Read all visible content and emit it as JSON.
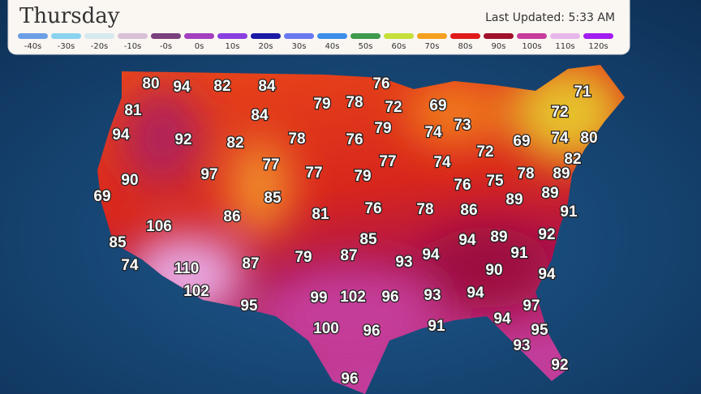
{
  "header": {
    "title": "Thursday",
    "last_updated": "Last Updated: 5:33 AM"
  },
  "legend": [
    {
      "label": "-40s",
      "color": "#6c9fe4"
    },
    {
      "label": "-30s",
      "color": "#8ad3f0"
    },
    {
      "label": "-20s",
      "color": "#d6e9ee"
    },
    {
      "label": "-10s",
      "color": "#d8c2d8"
    },
    {
      "label": "-0s",
      "color": "#7a3f7c"
    },
    {
      "label": "0s",
      "color": "#a43fc0"
    },
    {
      "label": "10s",
      "color": "#8a3fe0"
    },
    {
      "label": "20s",
      "color": "#1a1aa6"
    },
    {
      "label": "30s",
      "color": "#6a78f0"
    },
    {
      "label": "40s",
      "color": "#3c8ee8"
    },
    {
      "label": "50s",
      "color": "#3e9a4c"
    },
    {
      "label": "60s",
      "color": "#c6e03a"
    },
    {
      "label": "70s",
      "color": "#f5a01e"
    },
    {
      "label": "80s",
      "color": "#e01a1a"
    },
    {
      "label": "90s",
      "color": "#a0102a"
    },
    {
      "label": "100s",
      "color": "#c83c9c"
    },
    {
      "label": "110s",
      "color": "#e6b8e8"
    },
    {
      "label": "120s",
      "color": "#a21cf0"
    }
  ],
  "temperatures": [
    80,
    94,
    82,
    84,
    76,
    71,
    81,
    79,
    78,
    72,
    69,
    72,
    84,
    73,
    79,
    74,
    74,
    80,
    94,
    92,
    82,
    78,
    76,
    72,
    69,
    82,
    77,
    77,
    79,
    77,
    74,
    78,
    89,
    90,
    97,
    76,
    75,
    89,
    89,
    69,
    85,
    86,
    81,
    76,
    78,
    86,
    91,
    106,
    85,
    94,
    89,
    92,
    85,
    74,
    110,
    87,
    79,
    87,
    93,
    94,
    91,
    90,
    94,
    102,
    95,
    99,
    102,
    96,
    93,
    94,
    97,
    100,
    96,
    91,
    94,
    95,
    93,
    92,
    96
  ]
}
